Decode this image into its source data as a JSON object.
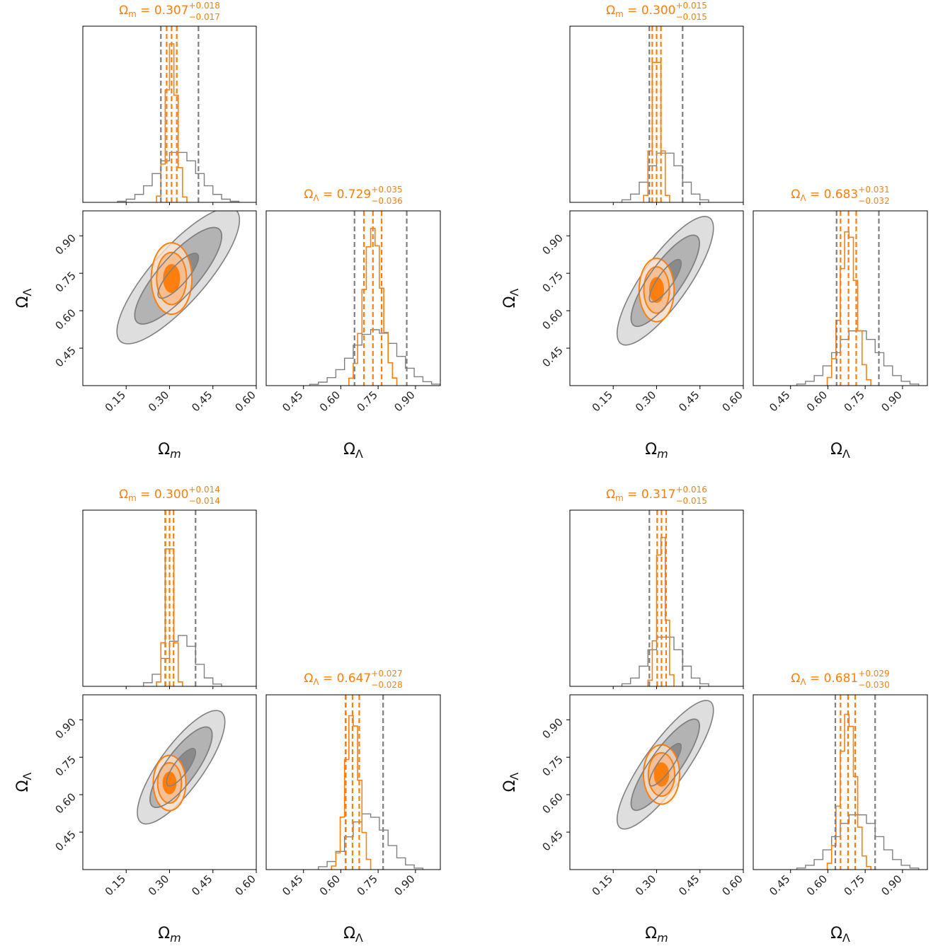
{
  "figure": {
    "colors": {
      "orange": "#ff7f0e",
      "grey_line": "#808080",
      "grey_fill_1": "#dedede",
      "grey_fill_2": "#b3b3b3",
      "grey_fill_3": "#8a8a8a",
      "orange_fill_1": "#fde3cc",
      "orange_fill_2": "#fbb883",
      "orange_fill_3": "#ff7f0e"
    }
  },
  "chart_data": [
    {
      "type": "corner",
      "panel": "top-left",
      "params": [
        "Ω_m",
        "Ω_Λ"
      ],
      "xlabel_m": "Ω",
      "xlabel_m_sub": "m",
      "xlabel_l": "Ω",
      "xlabel_l_sub": "Λ",
      "ticks_m": [
        "0.15",
        "0.30",
        "0.45",
        "0.60"
      ],
      "ticks_l": [
        "0.45",
        "0.60",
        "0.75",
        "0.90"
      ],
      "title_m": {
        "sym": "Ω",
        "sub": "m",
        "value": " = 0.307",
        "plus": "+0.018",
        "minus": "−0.017"
      },
      "title_l": {
        "sym": "Ω",
        "sub": "Λ",
        "value": " = 0.729",
        "plus": "+0.035",
        "minus": "−0.036"
      },
      "xlim_m": [
        0.0,
        0.6
      ],
      "xlim_l": [
        0.3,
        1.0
      ],
      "grey": {
        "m_mean": 0.33,
        "m_sigma": 0.07,
        "l_mean": 0.74,
        "l_sigma": 0.09,
        "corr": 0.82,
        "m_quantiles": [
          0.27,
          0.4
        ],
        "l_quantiles": [
          0.655,
          0.865
        ]
      },
      "orange": {
        "m_mean": 0.307,
        "m_sigma": 0.0175,
        "l_mean": 0.729,
        "l_sigma": 0.0355,
        "corr": 0.0,
        "m_quantiles": [
          0.29,
          0.307,
          0.325
        ],
        "l_quantiles": [
          0.693,
          0.729,
          0.764
        ]
      }
    },
    {
      "type": "corner",
      "panel": "top-right",
      "params": [
        "Ω_m",
        "Ω_Λ"
      ],
      "xlabel_m": "Ω",
      "xlabel_m_sub": "m",
      "xlabel_l": "Ω",
      "xlabel_l_sub": "Λ",
      "ticks_m": [
        "0.15",
        "0.30",
        "0.45",
        "0.60"
      ],
      "ticks_l": [
        "0.45",
        "0.60",
        "0.75",
        "0.90"
      ],
      "title_m": {
        "sym": "Ω",
        "sub": "m",
        "value": " = 0.300",
        "plus": "+0.015",
        "minus": "−0.015"
      },
      "title_l": {
        "sym": "Ω",
        "sub": "Λ",
        "value": " = 0.683",
        "plus": "+0.031",
        "minus": "−0.032"
      },
      "xlim_m": [
        0.0,
        0.6
      ],
      "xlim_l": [
        0.3,
        1.0
      ],
      "grey": {
        "m_mean": 0.33,
        "m_sigma": 0.055,
        "l_mean": 0.72,
        "l_sigma": 0.085,
        "corr": 0.82,
        "m_quantiles": [
          0.275,
          0.39
        ],
        "l_quantiles": [
          0.635,
          0.805
        ]
      },
      "orange": {
        "m_mean": 0.3,
        "m_sigma": 0.015,
        "l_mean": 0.683,
        "l_sigma": 0.0315,
        "corr": 0.0,
        "m_quantiles": [
          0.285,
          0.3,
          0.315
        ],
        "l_quantiles": [
          0.651,
          0.683,
          0.714
        ]
      }
    },
    {
      "type": "corner",
      "panel": "bottom-left",
      "params": [
        "Ω_m",
        "Ω_Λ"
      ],
      "xlabel_m": "Ω",
      "xlabel_m_sub": "m",
      "xlabel_l": "Ω",
      "xlabel_l_sub": "Λ",
      "ticks_m": [
        "0.15",
        "0.30",
        "0.45",
        "0.60"
      ],
      "ticks_l": [
        "0.45",
        "0.60",
        "0.75",
        "0.90"
      ],
      "title_m": {
        "sym": "Ω",
        "sub": "m",
        "value": " = 0.300",
        "plus": "+0.014",
        "minus": "−0.014"
      },
      "title_l": {
        "sym": "Ω",
        "sub": "Λ",
        "value": " = 0.647",
        "plus": "+0.027",
        "minus": "−0.028"
      },
      "xlim_m": [
        0.0,
        0.6
      ],
      "xlim_l": [
        0.3,
        1.0
      ],
      "grey": {
        "m_mean": 0.34,
        "m_sigma": 0.05,
        "l_mean": 0.71,
        "l_sigma": 0.075,
        "corr": 0.8,
        "m_quantiles": [
          0.285,
          0.39
        ],
        "l_quantiles": [
          0.62,
          0.77
        ]
      },
      "orange": {
        "m_mean": 0.3,
        "m_sigma": 0.014,
        "l_mean": 0.647,
        "l_sigma": 0.0275,
        "corr": 0.0,
        "m_quantiles": [
          0.286,
          0.3,
          0.314
        ],
        "l_quantiles": [
          0.619,
          0.647,
          0.674
        ]
      }
    },
    {
      "type": "corner",
      "panel": "bottom-right",
      "params": [
        "Ω_m",
        "Ω_Λ"
      ],
      "xlabel_m": "Ω",
      "xlabel_m_sub": "m",
      "xlabel_l": "Ω",
      "xlabel_l_sub": "Λ",
      "ticks_m": [
        "0.15",
        "0.30",
        "0.45",
        "0.60"
      ],
      "ticks_l": [
        "0.45",
        "0.60",
        "0.75",
        "0.90"
      ],
      "title_m": {
        "sym": "Ω",
        "sub": "m",
        "value": " = 0.317",
        "plus": "+0.016",
        "minus": "−0.015"
      },
      "title_l": {
        "sym": "Ω",
        "sub": "Λ",
        "value": " = 0.681",
        "plus": "+0.029",
        "minus": "−0.030"
      },
      "xlim_m": [
        0.0,
        0.6
      ],
      "xlim_l": [
        0.3,
        1.0
      ],
      "grey": {
        "m_mean": 0.33,
        "m_sigma": 0.055,
        "l_mean": 0.72,
        "l_sigma": 0.085,
        "corr": 0.85,
        "m_quantiles": [
          0.275,
          0.39
        ],
        "l_quantiles": [
          0.63,
          0.79
        ]
      },
      "orange": {
        "m_mean": 0.317,
        "m_sigma": 0.0155,
        "l_mean": 0.681,
        "l_sigma": 0.0295,
        "corr": 0.0,
        "m_quantiles": [
          0.302,
          0.317,
          0.333
        ],
        "l_quantiles": [
          0.651,
          0.681,
          0.71
        ]
      }
    }
  ]
}
